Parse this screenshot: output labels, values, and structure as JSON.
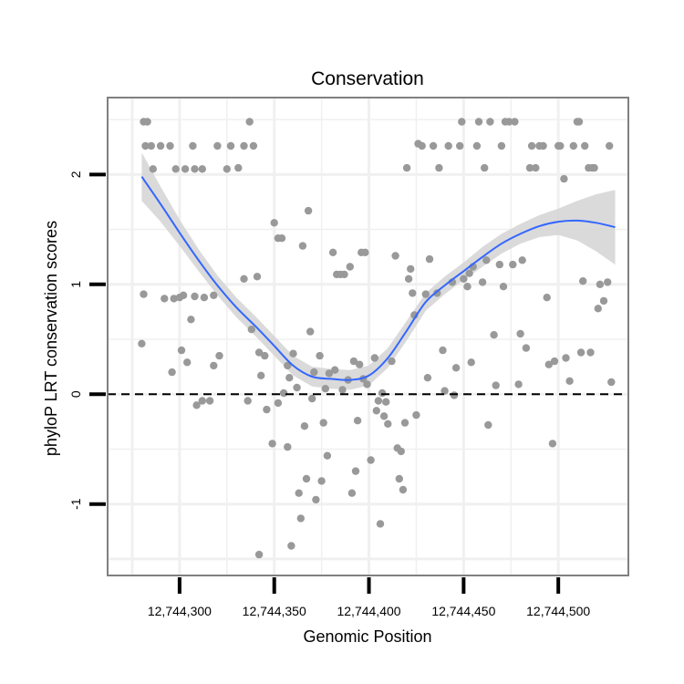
{
  "chart_data": {
    "type": "scatter",
    "title": "Conservation",
    "xlabel": "Genomic Position",
    "ylabel": "phyloP LRT conservation scores",
    "xlim": [
      12744262,
      12744537
    ],
    "ylim": [
      -1.65,
      2.7
    ],
    "x_ticks": [
      12744300,
      12744350,
      12744400,
      12744450,
      12744500
    ],
    "x_tick_labels": [
      "12,744,300",
      "12,744,350",
      "12,744,400",
      "12,744,450",
      "12,744,500"
    ],
    "y_ticks": [
      -1,
      0,
      1,
      2
    ],
    "y_tick_labels": [
      "-1",
      "0",
      "1",
      "2"
    ],
    "reference_line": {
      "y": 0,
      "style": "dashed"
    },
    "colors": {
      "points": "#999999",
      "smooth": "#3366ff",
      "ribbon": "#d4d4d4",
      "grid": "#f0f0f0",
      "frame": "#808080"
    },
    "points": [
      {
        "x": 12744281,
        "y": 2.48
      },
      {
        "x": 12744283,
        "y": 2.48
      },
      {
        "x": 12744282,
        "y": 2.26
      },
      {
        "x": 12744285,
        "y": 2.26
      },
      {
        "x": 12744290,
        "y": 2.26
      },
      {
        "x": 12744295,
        "y": 2.26
      },
      {
        "x": 12744286,
        "y": 2.05
      },
      {
        "x": 12744298,
        "y": 2.05
      },
      {
        "x": 12744303,
        "y": 2.05
      },
      {
        "x": 12744308,
        "y": 2.05
      },
      {
        "x": 12744312,
        "y": 2.05
      },
      {
        "x": 12744307,
        "y": 2.26
      },
      {
        "x": 12744320,
        "y": 2.26
      },
      {
        "x": 12744327,
        "y": 2.26
      },
      {
        "x": 12744334,
        "y": 2.26
      },
      {
        "x": 12744339,
        "y": 2.26
      },
      {
        "x": 12744325,
        "y": 2.05
      },
      {
        "x": 12744331,
        "y": 2.06
      },
      {
        "x": 12744337,
        "y": 2.48
      },
      {
        "x": 12744280,
        "y": 0.46
      },
      {
        "x": 12744281,
        "y": 0.91
      },
      {
        "x": 12744292,
        "y": 0.87
      },
      {
        "x": 12744297,
        "y": 0.87
      },
      {
        "x": 12744300,
        "y": 0.88
      },
      {
        "x": 12744302,
        "y": 0.9
      },
      {
        "x": 12744306,
        "y": 0.68
      },
      {
        "x": 12744308,
        "y": 0.89
      },
      {
        "x": 12744313,
        "y": 0.88
      },
      {
        "x": 12744318,
        "y": 0.9
      },
      {
        "x": 12744296,
        "y": 0.2
      },
      {
        "x": 12744301,
        "y": 0.4
      },
      {
        "x": 12744304,
        "y": 0.29
      },
      {
        "x": 12744309,
        "y": -0.1
      },
      {
        "x": 12744312,
        "y": -0.06
      },
      {
        "x": 12744316,
        "y": -0.06
      },
      {
        "x": 12744318,
        "y": 0.26
      },
      {
        "x": 12744321,
        "y": 0.35
      },
      {
        "x": 12744334,
        "y": 1.05
      },
      {
        "x": 12744341,
        "y": 1.07
      },
      {
        "x": 12744338,
        "y": 0.59
      },
      {
        "x": 12744342,
        "y": 0.38
      },
      {
        "x": 12744345,
        "y": 0.35
      },
      {
        "x": 12744343,
        "y": 0.17
      },
      {
        "x": 12744346,
        "y": -0.14
      },
      {
        "x": 12744349,
        "y": -0.45
      },
      {
        "x": 12744336,
        "y": -0.06
      },
      {
        "x": 12744350,
        "y": 1.56
      },
      {
        "x": 12744352,
        "y": 1.42
      },
      {
        "x": 12744354,
        "y": 1.42
      },
      {
        "x": 12744352,
        "y": -0.08
      },
      {
        "x": 12744355,
        "y": 0.01
      },
      {
        "x": 12744357,
        "y": 0.26
      },
      {
        "x": 12744358,
        "y": 0.15
      },
      {
        "x": 12744360,
        "y": 0.37
      },
      {
        "x": 12744357,
        "y": -0.48
      },
      {
        "x": 12744359,
        "y": -1.38
      },
      {
        "x": 12744342,
        "y": -1.46
      },
      {
        "x": 12744362,
        "y": 0.06
      },
      {
        "x": 12744363,
        "y": -0.9
      },
      {
        "x": 12744364,
        "y": -1.13
      },
      {
        "x": 12744365,
        "y": 1.35
      },
      {
        "x": 12744366,
        "y": -0.29
      },
      {
        "x": 12744367,
        "y": -0.77
      },
      {
        "x": 12744368,
        "y": 1.67
      },
      {
        "x": 12744369,
        "y": 0.57
      },
      {
        "x": 12744370,
        "y": -0.04
      },
      {
        "x": 12744371,
        "y": 0.2
      },
      {
        "x": 12744372,
        "y": -0.96
      },
      {
        "x": 12744374,
        "y": 0.35
      },
      {
        "x": 12744375,
        "y": -0.79
      },
      {
        "x": 12744376,
        "y": -0.26
      },
      {
        "x": 12744377,
        "y": 0.05
      },
      {
        "x": 12744378,
        "y": -0.56
      },
      {
        "x": 12744379,
        "y": 0.19
      },
      {
        "x": 12744381,
        "y": 1.29
      },
      {
        "x": 12744382,
        "y": 0.22
      },
      {
        "x": 12744383,
        "y": 1.09
      },
      {
        "x": 12744385,
        "y": 1.09
      },
      {
        "x": 12744387,
        "y": 1.09
      },
      {
        "x": 12744386,
        "y": 0.04
      },
      {
        "x": 12744389,
        "y": 0.13
      },
      {
        "x": 12744390,
        "y": 1.16
      },
      {
        "x": 12744391,
        "y": -0.9
      },
      {
        "x": 12744393,
        "y": -0.7
      },
      {
        "x": 12744392,
        "y": 0.3
      },
      {
        "x": 12744394,
        "y": -0.24
      },
      {
        "x": 12744395,
        "y": 0.27
      },
      {
        "x": 12744396,
        "y": 1.29
      },
      {
        "x": 12744398,
        "y": 1.29
      },
      {
        "x": 12744397,
        "y": 0.14
      },
      {
        "x": 12744399,
        "y": 0.09
      },
      {
        "x": 12744401,
        "y": -0.6
      },
      {
        "x": 12744403,
        "y": 0.33
      },
      {
        "x": 12744404,
        "y": -0.15
      },
      {
        "x": 12744405,
        "y": -0.06
      },
      {
        "x": 12744406,
        "y": -1.18
      },
      {
        "x": 12744407,
        "y": 0.01
      },
      {
        "x": 12744408,
        "y": -0.2
      },
      {
        "x": 12744409,
        "y": -0.07
      },
      {
        "x": 12744410,
        "y": -0.27
      },
      {
        "x": 12744412,
        "y": 0.3
      },
      {
        "x": 12744414,
        "y": 1.26
      },
      {
        "x": 12744415,
        "y": -0.49
      },
      {
        "x": 12744416,
        "y": -0.77
      },
      {
        "x": 12744417,
        "y": -0.52
      },
      {
        "x": 12744418,
        "y": -0.87
      },
      {
        "x": 12744419,
        "y": -0.26
      },
      {
        "x": 12744420,
        "y": 2.06
      },
      {
        "x": 12744421,
        "y": 1.05
      },
      {
        "x": 12744422,
        "y": 1.14
      },
      {
        "x": 12744423,
        "y": 0.92
      },
      {
        "x": 12744424,
        "y": 0.72
      },
      {
        "x": 12744425,
        "y": -0.19
      },
      {
        "x": 12744426,
        "y": 2.28
      },
      {
        "x": 12744428,
        "y": 2.26
      },
      {
        "x": 12744430,
        "y": 0.91
      },
      {
        "x": 12744431,
        "y": 0.15
      },
      {
        "x": 12744432,
        "y": 1.23
      },
      {
        "x": 12744434,
        "y": 2.26
      },
      {
        "x": 12744436,
        "y": 0.92
      },
      {
        "x": 12744437,
        "y": 2.06
      },
      {
        "x": 12744439,
        "y": 0.4
      },
      {
        "x": 12744440,
        "y": 0.03
      },
      {
        "x": 12744442,
        "y": 2.26
      },
      {
        "x": 12744444,
        "y": 1.02
      },
      {
        "x": 12744445,
        "y": -0.01
      },
      {
        "x": 12744446,
        "y": 0.24
      },
      {
        "x": 12744448,
        "y": 2.26
      },
      {
        "x": 12744449,
        "y": 2.48
      },
      {
        "x": 12744450,
        "y": 1.05
      },
      {
        "x": 12744452,
        "y": 0.98
      },
      {
        "x": 12744453,
        "y": 1.1
      },
      {
        "x": 12744454,
        "y": 0.29
      },
      {
        "x": 12744455,
        "y": 1.16
      },
      {
        "x": 12744457,
        "y": 2.26
      },
      {
        "x": 12744458,
        "y": 2.48
      },
      {
        "x": 12744460,
        "y": 1.02
      },
      {
        "x": 12744461,
        "y": 2.06
      },
      {
        "x": 12744462,
        "y": 1.22
      },
      {
        "x": 12744463,
        "y": -0.28
      },
      {
        "x": 12744464,
        "y": 2.48
      },
      {
        "x": 12744466,
        "y": 0.54
      },
      {
        "x": 12744467,
        "y": 0.08
      },
      {
        "x": 12744469,
        "y": 1.18
      },
      {
        "x": 12744470,
        "y": 2.26
      },
      {
        "x": 12744471,
        "y": 0.98
      },
      {
        "x": 12744472,
        "y": 2.48
      },
      {
        "x": 12744474,
        "y": 2.48
      },
      {
        "x": 12744476,
        "y": 1.18
      },
      {
        "x": 12744477,
        "y": 2.48
      },
      {
        "x": 12744479,
        "y": 0.09
      },
      {
        "x": 12744480,
        "y": 0.55
      },
      {
        "x": 12744481,
        "y": 1.22
      },
      {
        "x": 12744483,
        "y": 0.42
      },
      {
        "x": 12744485,
        "y": 2.06
      },
      {
        "x": 12744486,
        "y": 2.26
      },
      {
        "x": 12744488,
        "y": 2.06
      },
      {
        "x": 12744490,
        "y": 2.26
      },
      {
        "x": 12744492,
        "y": 2.26
      },
      {
        "x": 12744494,
        "y": 0.88
      },
      {
        "x": 12744495,
        "y": 0.27
      },
      {
        "x": 12744497,
        "y": -0.45
      },
      {
        "x": 12744498,
        "y": 0.3
      },
      {
        "x": 12744500,
        "y": 2.26
      },
      {
        "x": 12744501,
        "y": 2.26
      },
      {
        "x": 12744503,
        "y": 1.96
      },
      {
        "x": 12744504,
        "y": 0.33
      },
      {
        "x": 12744506,
        "y": 0.12
      },
      {
        "x": 12744508,
        "y": 2.26
      },
      {
        "x": 12744510,
        "y": 2.48
      },
      {
        "x": 12744511,
        "y": 2.48
      },
      {
        "x": 12744512,
        "y": 0.38
      },
      {
        "x": 12744513,
        "y": 1.03
      },
      {
        "x": 12744514,
        "y": 2.26
      },
      {
        "x": 12744516,
        "y": 2.06
      },
      {
        "x": 12744517,
        "y": 0.38
      },
      {
        "x": 12744518,
        "y": 2.06
      },
      {
        "x": 12744519,
        "y": 2.06
      },
      {
        "x": 12744521,
        "y": 0.78
      },
      {
        "x": 12744522,
        "y": 1.0
      },
      {
        "x": 12744524,
        "y": 0.85
      },
      {
        "x": 12744526,
        "y": 1.02
      },
      {
        "x": 12744527,
        "y": 2.26
      },
      {
        "x": 12744528,
        "y": 0.11
      }
    ],
    "smooth": [
      {
        "x": 12744280,
        "y": 1.98
      },
      {
        "x": 12744290,
        "y": 1.73
      },
      {
        "x": 12744300,
        "y": 1.47
      },
      {
        "x": 12744310,
        "y": 1.22
      },
      {
        "x": 12744320,
        "y": 0.99
      },
      {
        "x": 12744330,
        "y": 0.79
      },
      {
        "x": 12744340,
        "y": 0.62
      },
      {
        "x": 12744350,
        "y": 0.44
      },
      {
        "x": 12744360,
        "y": 0.26
      },
      {
        "x": 12744370,
        "y": 0.16
      },
      {
        "x": 12744380,
        "y": 0.14
      },
      {
        "x": 12744390,
        "y": 0.13
      },
      {
        "x": 12744400,
        "y": 0.17
      },
      {
        "x": 12744410,
        "y": 0.33
      },
      {
        "x": 12744420,
        "y": 0.58
      },
      {
        "x": 12744430,
        "y": 0.84
      },
      {
        "x": 12744440,
        "y": 0.99
      },
      {
        "x": 12744450,
        "y": 1.12
      },
      {
        "x": 12744460,
        "y": 1.25
      },
      {
        "x": 12744470,
        "y": 1.37
      },
      {
        "x": 12744480,
        "y": 1.46
      },
      {
        "x": 12744490,
        "y": 1.53
      },
      {
        "x": 12744500,
        "y": 1.57
      },
      {
        "x": 12744510,
        "y": 1.58
      },
      {
        "x": 12744520,
        "y": 1.56
      },
      {
        "x": 12744530,
        "y": 1.52
      }
    ],
    "ribbon_half_width": [
      0.22,
      0.16,
      0.12,
      0.1,
      0.09,
      0.09,
      0.09,
      0.09,
      0.09,
      0.09,
      0.09,
      0.09,
      0.09,
      0.09,
      0.09,
      0.08,
      0.08,
      0.08,
      0.09,
      0.09,
      0.09,
      0.1,
      0.12,
      0.18,
      0.26,
      0.34
    ]
  }
}
